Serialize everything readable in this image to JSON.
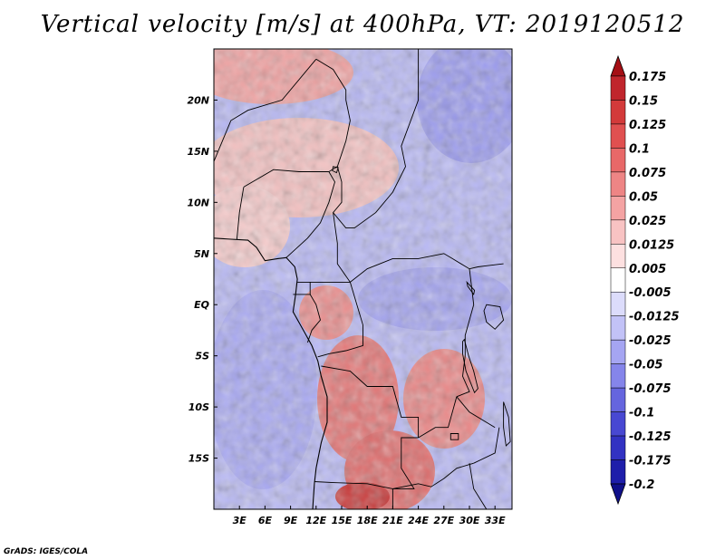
{
  "title": "Vertical velocity [m/s] at 400hPa, VT: 2019120512",
  "credit": "GrADS: IGES/COLA",
  "map": {
    "lon_range": [
      0,
      35
    ],
    "lat_range": [
      -20,
      25
    ],
    "lat_ticks": [
      {
        "value": 20,
        "label": "20N"
      },
      {
        "value": 15,
        "label": "15N"
      },
      {
        "value": 10,
        "label": "10N"
      },
      {
        "value": 5,
        "label": "5N"
      },
      {
        "value": 0,
        "label": "EQ"
      },
      {
        "value": -5,
        "label": "5S"
      },
      {
        "value": -10,
        "label": "10S"
      },
      {
        "value": -15,
        "label": "15S"
      }
    ],
    "lon_ticks": [
      {
        "value": 3,
        "label": "3E"
      },
      {
        "value": 6,
        "label": "6E"
      },
      {
        "value": 9,
        "label": "9E"
      },
      {
        "value": 12,
        "label": "12E"
      },
      {
        "value": 15,
        "label": "15E"
      },
      {
        "value": 18,
        "label": "18E"
      },
      {
        "value": 21,
        "label": "21E"
      },
      {
        "value": 24,
        "label": "24E"
      },
      {
        "value": 27,
        "label": "27E"
      },
      {
        "value": 30,
        "label": "30E"
      },
      {
        "value": 33,
        "label": "33E"
      }
    ],
    "coastline": [
      [
        0,
        6.5
      ],
      [
        2,
        6.4
      ],
      [
        4,
        6.3
      ],
      [
        5,
        5.6
      ],
      [
        6,
        4.3
      ],
      [
        7.5,
        4.5
      ],
      [
        8.5,
        4.6
      ],
      [
        9.5,
        3.7
      ],
      [
        9.8,
        2.5
      ],
      [
        9.6,
        1
      ],
      [
        9.3,
        -0.7
      ],
      [
        10.5,
        -2.5
      ],
      [
        11.5,
        -4
      ],
      [
        12.2,
        -5.5
      ],
      [
        12.6,
        -7
      ],
      [
        13.3,
        -9
      ],
      [
        13.3,
        -11.5
      ],
      [
        12.6,
        -13.5
      ],
      [
        12,
        -16
      ],
      [
        11.8,
        -17.5
      ],
      [
        11.6,
        -20
      ]
    ],
    "borders": [
      [
        [
          12,
          24
        ],
        [
          14,
          23
        ],
        [
          15.5,
          21
        ],
        [
          15.5,
          20
        ],
        [
          16,
          18
        ],
        [
          15.5,
          16
        ],
        [
          14.5,
          13.5
        ],
        [
          15,
          12
        ],
        [
          15,
          10
        ],
        [
          14,
          9
        ],
        [
          15.5,
          7.5
        ],
        [
          16.5,
          7.5
        ],
        [
          19,
          9
        ],
        [
          21,
          11
        ],
        [
          22.5,
          13.5
        ],
        [
          22,
          15.5
        ],
        [
          24,
          20
        ],
        [
          24,
          25
        ]
      ],
      [
        [
          12,
          24
        ],
        [
          8,
          20
        ],
        [
          4,
          19
        ],
        [
          2,
          18
        ],
        [
          0,
          14
        ]
      ],
      [
        [
          3.5,
          11.5
        ],
        [
          3,
          9
        ],
        [
          2.7,
          6.4
        ]
      ],
      [
        [
          3.5,
          11.5
        ],
        [
          7,
          13.2
        ],
        [
          10,
          13
        ],
        [
          13.5,
          13
        ]
      ],
      [
        [
          8.5,
          4.6
        ],
        [
          11,
          6.5
        ],
        [
          12.5,
          8
        ],
        [
          13.5,
          10
        ],
        [
          14.2,
          12
        ],
        [
          13.5,
          13
        ],
        [
          14.5,
          13.5
        ]
      ],
      [
        [
          14,
          9
        ],
        [
          14.5,
          6
        ],
        [
          14.5,
          4
        ],
        [
          16,
          2.2
        ],
        [
          18,
          3.5
        ],
        [
          21,
          4.5
        ],
        [
          24,
          4.5
        ],
        [
          27,
          5
        ],
        [
          28,
          4.5
        ],
        [
          30,
          3.5
        ],
        [
          31,
          3.7
        ],
        [
          32,
          3.8
        ],
        [
          34,
          4
        ]
      ],
      [
        [
          9.8,
          2.2
        ],
        [
          11.3,
          2.2
        ],
        [
          13,
          2.2
        ],
        [
          14,
          2.2
        ],
        [
          16,
          2.2
        ]
      ],
      [
        [
          11.3,
          2.2
        ],
        [
          11.3,
          1
        ],
        [
          9.3,
          1
        ]
      ],
      [
        [
          11.3,
          1
        ],
        [
          12,
          0
        ],
        [
          12.5,
          -1.5
        ],
        [
          11.5,
          -2.5
        ],
        [
          11,
          -3.7
        ]
      ],
      [
        [
          16,
          2.2
        ],
        [
          17.5,
          -2
        ],
        [
          17.5,
          -4
        ],
        [
          15.5,
          -4.5
        ],
        [
          13.5,
          -4.8
        ],
        [
          12.2,
          -5.1
        ]
      ],
      [
        [
          30,
          3.5
        ],
        [
          30.5,
          0
        ],
        [
          30,
          -1.5
        ],
        [
          29.5,
          -3
        ],
        [
          29.5,
          -5
        ]
      ],
      [
        [
          29.5,
          -5
        ],
        [
          29.2,
          -7
        ],
        [
          30,
          -8.5
        ],
        [
          28.5,
          -9
        ]
      ],
      [
        [
          12.6,
          -6
        ],
        [
          16,
          -6.5
        ],
        [
          18,
          -8
        ],
        [
          21,
          -8
        ],
        [
          22,
          -11
        ],
        [
          24,
          -11
        ],
        [
          24,
          -13
        ]
      ],
      [
        [
          24,
          -13
        ],
        [
          22,
          -13
        ],
        [
          22,
          -16
        ],
        [
          23.5,
          -18
        ],
        [
          21,
          -18
        ],
        [
          18,
          -17.5
        ],
        [
          14,
          -17.4
        ],
        [
          11.8,
          -17.3
        ]
      ],
      [
        [
          24,
          -13
        ],
        [
          26,
          -12
        ],
        [
          27.5,
          -12
        ],
        [
          28.5,
          -9
        ]
      ],
      [
        [
          28.5,
          -9
        ],
        [
          30,
          -10.5
        ],
        [
          33,
          -12
        ]
      ],
      [
        [
          21,
          -18
        ],
        [
          24,
          -17.5
        ],
        [
          25.5,
          -17.8
        ],
        [
          27,
          -17
        ],
        [
          28.5,
          -16
        ],
        [
          30.5,
          -15.5
        ]
      ],
      [
        [
          30.5,
          -15.5
        ],
        [
          33,
          -14.5
        ],
        [
          33.5,
          -12
        ]
      ],
      [
        [
          21,
          -18
        ],
        [
          21,
          -20
        ]
      ],
      [
        [
          30,
          -15.5
        ],
        [
          30.5,
          -18
        ],
        [
          32,
          -20
        ]
      ]
    ],
    "lakes": [
      [
        [
          29.4,
          -3.4
        ],
        [
          29.9,
          -5
        ],
        [
          30.5,
          -6.5
        ],
        [
          31,
          -8.2
        ],
        [
          30.6,
          -8.6
        ],
        [
          29.6,
          -6.5
        ],
        [
          29.2,
          -4.8
        ],
        [
          29.2,
          -3.6
        ]
      ],
      [
        [
          29.7,
          2.2
        ],
        [
          30.6,
          1.4
        ],
        [
          30.5,
          1.0
        ],
        [
          29.8,
          1.8
        ]
      ],
      [
        [
          32,
          0
        ],
        [
          33.6,
          -0.2
        ],
        [
          34,
          -1.5
        ],
        [
          33,
          -2.4
        ],
        [
          32,
          -1.7
        ],
        [
          31.7,
          -0.6
        ]
      ],
      [
        [
          27.8,
          -12.6
        ],
        [
          28.7,
          -12.6
        ],
        [
          28.7,
          -13.2
        ],
        [
          27.8,
          -13.2
        ]
      ],
      [
        [
          34.0,
          -9.5
        ],
        [
          34.6,
          -11
        ],
        [
          34.8,
          -13.4
        ],
        [
          34.3,
          -13.8
        ],
        [
          34.0,
          -12.0
        ]
      ],
      [
        [
          14,
          13.5
        ],
        [
          14.6,
          13.4
        ],
        [
          14.4,
          12.9
        ],
        [
          13.9,
          13.1
        ]
      ]
    ]
  },
  "colorbar": {
    "levels": [
      "0.175",
      "0.15",
      "0.125",
      "0.1",
      "0.075",
      "0.05",
      "0.025",
      "0.0125",
      "0.005",
      "-0.005",
      "-0.0125",
      "-0.025",
      "-0.05",
      "-0.075",
      "-0.1",
      "-0.125",
      "-0.175",
      "-0.2"
    ],
    "colors": [
      "#a50f15",
      "#c0252c",
      "#d33a3a",
      "#e05050",
      "#e86868",
      "#ee8585",
      "#f4a3a3",
      "#f8c3c3",
      "#fde0e0",
      "#ffffff",
      "#dcdcfb",
      "#c2c2f7",
      "#a5a5f2",
      "#8585ea",
      "#6565de",
      "#4848d2",
      "#3232c2",
      "#1e1eaa",
      "#10108a"
    ]
  }
}
